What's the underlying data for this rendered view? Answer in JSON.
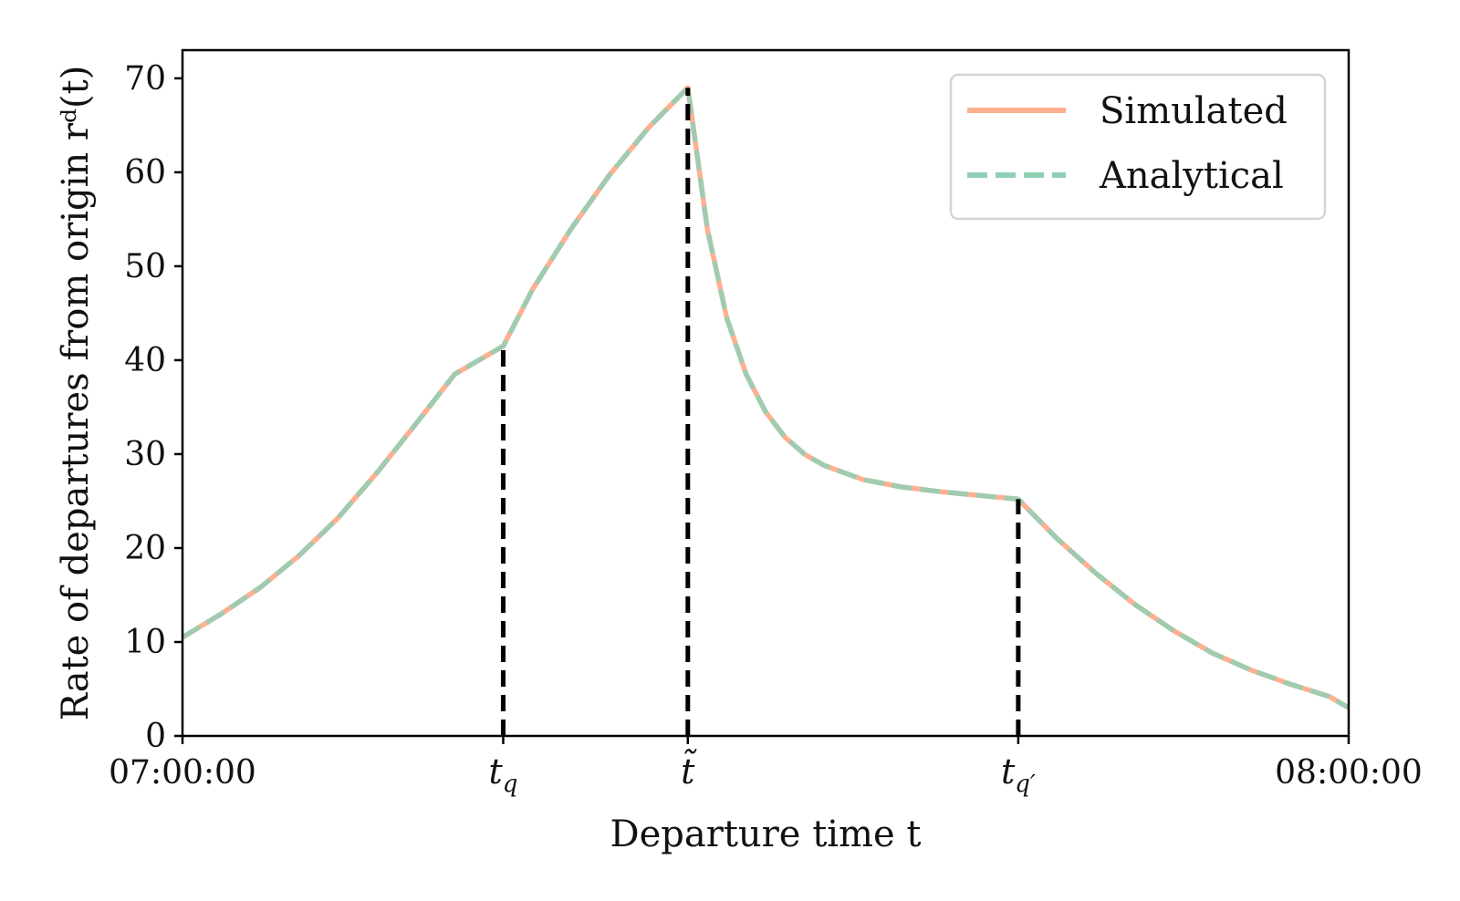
{
  "chart_data": {
    "type": "line",
    "xlabel": "Departure time t",
    "ylabel": "Rate of departures from origin rᵈ(t)",
    "x_unit": "minutes",
    "xlim": [
      "07:00:00",
      "08:00:00"
    ],
    "ylim": [
      0,
      73
    ],
    "yticks": [
      0,
      10,
      20,
      30,
      40,
      50,
      60,
      70
    ],
    "xticks": [
      {
        "time": "07:00:00",
        "label": "07:00:00"
      },
      {
        "time": "07:16:30",
        "label": "t",
        "sub": "q"
      },
      {
        "time": "07:26:00",
        "label": "t̃"
      },
      {
        "time": "07:43:00",
        "label": "t",
        "sub": "q′"
      },
      {
        "time": "08:00:00",
        "label": "08:00:00"
      }
    ],
    "vlines": [
      {
        "time": "07:16:30",
        "ymax": 41.5
      },
      {
        "time": "07:26:00",
        "ymax": 69.0
      },
      {
        "time": "07:43:00",
        "ymax": 25.2
      }
    ],
    "legend": {
      "position": "top-right"
    },
    "series": [
      {
        "name": "Simulated",
        "style": "solid",
        "color": "#ffb090",
        "x": [
          "07:00:00",
          "07:02:00",
          "07:04:00",
          "07:06:00",
          "07:08:00",
          "07:10:00",
          "07:12:00",
          "07:14:00",
          "07:16:30",
          "07:18:00",
          "07:20:00",
          "07:22:00",
          "07:24:00",
          "07:26:00",
          "07:27:00",
          "07:28:00",
          "07:29:00",
          "07:30:00",
          "07:31:00",
          "07:32:00",
          "07:33:00",
          "07:35:00",
          "07:37:00",
          "07:39:00",
          "07:41:00",
          "07:43:00",
          "07:45:00",
          "07:47:00",
          "07:49:00",
          "07:51:00",
          "07:53:00",
          "07:55:00",
          "07:57:00",
          "07:59:00",
          "08:00:00"
        ],
        "y": [
          10.5,
          13.0,
          15.8,
          19.2,
          23.2,
          28.0,
          33.2,
          38.5,
          41.5,
          47.5,
          54.0,
          59.8,
          64.8,
          69.0,
          54.0,
          44.5,
          38.5,
          34.5,
          31.8,
          30.0,
          28.8,
          27.3,
          26.5,
          26.0,
          25.6,
          25.2,
          21.0,
          17.3,
          14.0,
          11.2,
          8.8,
          7.0,
          5.5,
          4.2,
          3.0
        ]
      },
      {
        "name": "Analytical",
        "style": "dashed",
        "color": "#8fd0b5",
        "x": [
          "07:00:00",
          "07:02:00",
          "07:04:00",
          "07:06:00",
          "07:08:00",
          "07:10:00",
          "07:12:00",
          "07:14:00",
          "07:16:30",
          "07:18:00",
          "07:20:00",
          "07:22:00",
          "07:24:00",
          "07:26:00",
          "07:27:00",
          "07:28:00",
          "07:29:00",
          "07:30:00",
          "07:31:00",
          "07:32:00",
          "07:33:00",
          "07:35:00",
          "07:37:00",
          "07:39:00",
          "07:41:00",
          "07:43:00",
          "07:45:00",
          "07:47:00",
          "07:49:00",
          "07:51:00",
          "07:53:00",
          "07:55:00",
          "07:57:00",
          "07:59:00",
          "08:00:00"
        ],
        "y": [
          10.5,
          13.0,
          15.8,
          19.2,
          23.2,
          28.0,
          33.2,
          38.5,
          41.5,
          47.5,
          54.0,
          59.8,
          64.8,
          69.0,
          54.0,
          44.5,
          38.5,
          34.5,
          31.8,
          30.0,
          28.8,
          27.3,
          26.5,
          26.0,
          25.6,
          25.2,
          21.0,
          17.3,
          14.0,
          11.2,
          8.8,
          7.0,
          5.5,
          4.2,
          3.0
        ]
      }
    ]
  }
}
